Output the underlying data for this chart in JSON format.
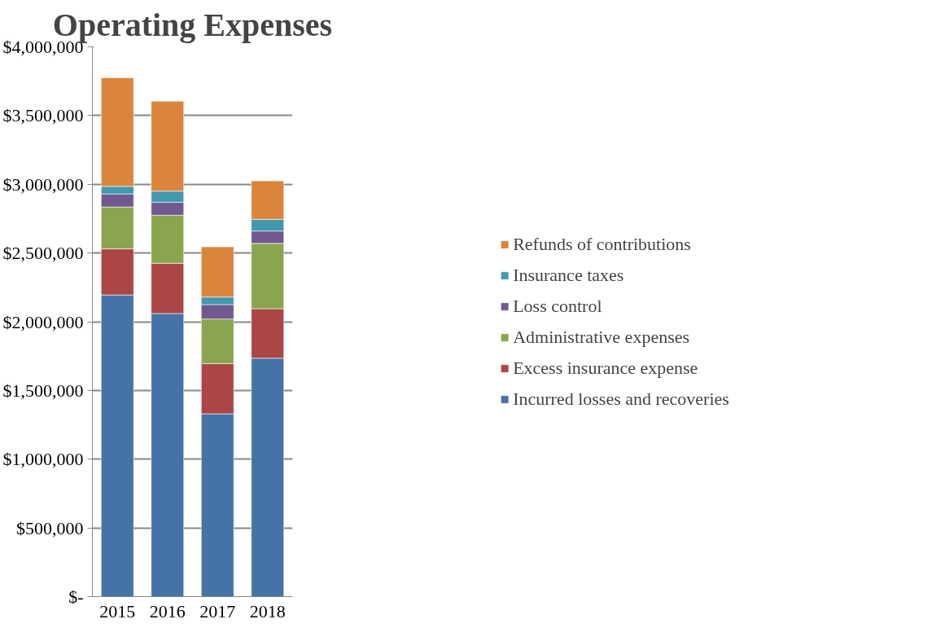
{
  "chart_data": {
    "type": "bar",
    "title": "Operating Expenses",
    "stacked": true,
    "categories": [
      "2015",
      "2016",
      "2017",
      "2018"
    ],
    "series": [
      {
        "name": "Incurred losses and recoveries",
        "color": "#4573a7",
        "values": [
          2195000,
          2060000,
          1330000,
          1735000
        ]
      },
      {
        "name": "Excess insurance expense",
        "color": "#aa4644",
        "values": [
          335000,
          365000,
          365000,
          360000
        ]
      },
      {
        "name": "Administrative expenses",
        "color": "#89a54e",
        "values": [
          305000,
          350000,
          325000,
          475000
        ]
      },
      {
        "name": "Loss control",
        "color": "#71588f",
        "values": [
          95000,
          95000,
          105000,
          90000
        ]
      },
      {
        "name": "Insurance taxes",
        "color": "#4298af",
        "values": [
          55000,
          80000,
          55000,
          85000
        ]
      },
      {
        "name": "Refunds of contributions",
        "color": "#db843d",
        "values": [
          790000,
          655000,
          365000,
          280000
        ]
      }
    ],
    "ylim": [
      0,
      4000000
    ],
    "yticks": [
      {
        "value": 0,
        "label": "$-"
      },
      {
        "value": 500000,
        "label": "$500,000"
      },
      {
        "value": 1000000,
        "label": "$1,000,000"
      },
      {
        "value": 1500000,
        "label": "$1,500,000"
      },
      {
        "value": 2000000,
        "label": "$2,000,000"
      },
      {
        "value": 2500000,
        "label": "$2,500,000"
      },
      {
        "value": 3000000,
        "label": "$3,000,000"
      },
      {
        "value": 3500000,
        "label": "$3,500,000"
      },
      {
        "value": 4000000,
        "label": "$4,000,000"
      }
    ],
    "grid": "y",
    "legend": "right"
  }
}
